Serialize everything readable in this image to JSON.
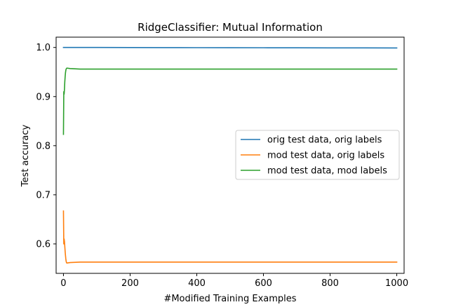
{
  "chart_data": {
    "type": "line",
    "title": "RidgeClassifier: Mutual Information",
    "xlabel": "#Modified Training Examples",
    "ylabel": "Test accuracy",
    "xlim": [
      -22,
      1022
    ],
    "ylim": [
      0.54,
      1.021
    ],
    "xticks": [
      0,
      200,
      400,
      600,
      800,
      1000
    ],
    "yticks": [
      0.6,
      0.7,
      0.8,
      0.9,
      1.0
    ],
    "xtick_labels": [
      "0",
      "200",
      "400",
      "600",
      "800",
      "1000"
    ],
    "ytick_labels": [
      "0.6",
      "0.7",
      "0.8",
      "0.9",
      "1.0"
    ],
    "grid": false,
    "legend_position": "center-right",
    "series": [
      {
        "name": "orig test data, orig labels",
        "color": "#1f77b4",
        "x": [
          0,
          100,
          200,
          300,
          400,
          500,
          600,
          700,
          800,
          900,
          1000
        ],
        "y": [
          1.0,
          1.0,
          0.9998,
          0.9997,
          0.9996,
          0.9995,
          0.9994,
          0.9993,
          0.9992,
          0.9991,
          0.999
        ]
      },
      {
        "name": "mod test data, orig labels",
        "color": "#ff7f0e",
        "x": [
          0,
          1,
          2,
          3,
          4,
          5,
          6,
          7,
          8,
          9,
          10,
          20,
          50,
          100,
          200,
          400,
          600,
          800,
          1000
        ],
        "y": [
          0.667,
          0.6,
          0.61,
          0.605,
          0.595,
          0.585,
          0.577,
          0.57,
          0.565,
          0.562,
          0.561,
          0.562,
          0.563,
          0.563,
          0.563,
          0.563,
          0.563,
          0.563,
          0.563
        ]
      },
      {
        "name": "mod test data, mod labels",
        "color": "#2ca02c",
        "x": [
          0,
          1,
          2,
          3,
          4,
          5,
          6,
          7,
          8,
          9,
          10,
          20,
          50,
          100,
          200,
          400,
          600,
          800,
          1000
        ],
        "y": [
          0.823,
          0.91,
          0.905,
          0.915,
          0.93,
          0.94,
          0.948,
          0.953,
          0.956,
          0.957,
          0.958,
          0.957,
          0.956,
          0.956,
          0.956,
          0.956,
          0.956,
          0.956,
          0.956
        ]
      }
    ]
  }
}
